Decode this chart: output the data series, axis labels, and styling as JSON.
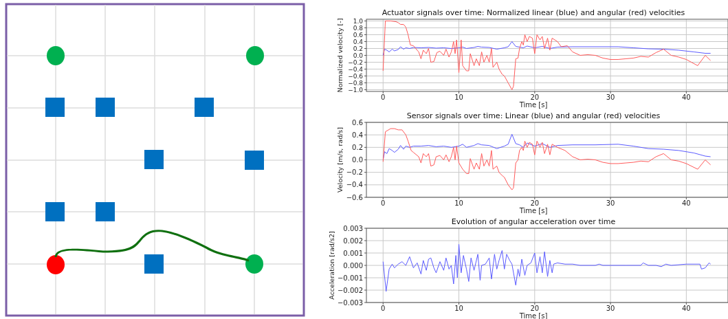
{
  "chart_data": [
    {
      "type": "line",
      "title": "Actuator signals over time: Normalized linear (blue) and angular (red) velocities",
      "xlabel": "Time [s]",
      "ylabel": "Normalized velocity [-]",
      "xlim": [
        -2.2,
        45.5
      ],
      "xticks": [
        0,
        10,
        20,
        30,
        40
      ],
      "ylim": [
        -1.05,
        1.05
      ],
      "yticks": [
        {
          "value": 1,
          "label": "1.0"
        },
        {
          "value": 0.8,
          "label": "0.8"
        },
        {
          "value": 0.6,
          "label": "0.6"
        },
        {
          "value": 0.4,
          "label": "0.4"
        },
        {
          "value": 0.2,
          "label": "0.2"
        },
        {
          "value": 0,
          "label": "0.0"
        },
        {
          "value": -0.2,
          "label": "−0.2"
        },
        {
          "value": -0.4,
          "label": "−0.4"
        },
        {
          "value": -0.6,
          "label": "−0.6"
        },
        {
          "value": -0.8,
          "label": "−0.8"
        },
        {
          "value": -1,
          "label": "−1.0"
        }
      ],
      "grid": true,
      "series": [
        {
          "color": "#5a5aff",
          "x": [
            0,
            0.2,
            0.5,
            0.8,
            1.2,
            1.5,
            2,
            2.3,
            2.7,
            3,
            3.5,
            4,
            5,
            6,
            7,
            8,
            9,
            10,
            10.5,
            11,
            12,
            12.5,
            13,
            14,
            15,
            16,
            16.5,
            17,
            17.5,
            18,
            18.5,
            19,
            20,
            21,
            22,
            23,
            25,
            28,
            31,
            33,
            35,
            37,
            39,
            41,
            42.5,
            43.2
          ],
          "values": [
            0,
            0.18,
            0.15,
            0.1,
            0.18,
            0.13,
            0.17,
            0.25,
            0.18,
            0.22,
            0.2,
            0.23,
            0.22,
            0.23,
            0.21,
            0.22,
            0.2,
            0.22,
            0.24,
            0.2,
            0.23,
            0.26,
            0.24,
            0.23,
            0.18,
            0.22,
            0.25,
            0.4,
            0.26,
            0.24,
            0.22,
            0.27,
            0.22,
            0.26,
            0.2,
            0.24,
            0.25,
            0.25,
            0.25,
            0.22,
            0.19,
            0.18,
            0.15,
            0.1,
            0.06,
            0.06
          ]
        },
        {
          "color": "#ff5a5a",
          "x": [
            0,
            0.3,
            1,
            1.7,
            2,
            2.3,
            2.7,
            3,
            3.3,
            3.6,
            4,
            4.3,
            4.7,
            5,
            5.3,
            5.7,
            6,
            6.3,
            6.7,
            7.1,
            7.5,
            8,
            8.3,
            8.7,
            9,
            9.3,
            9.5,
            9.7,
            10,
            10.3,
            10.5,
            11,
            11.3,
            11.5,
            12,
            12.3,
            12.7,
            13,
            13.3,
            13.7,
            14,
            14.3,
            14.5,
            15,
            15.3,
            15.7,
            16,
            16.5,
            17,
            17.2,
            17.5,
            17.8,
            18,
            18.3,
            18.5,
            18.7,
            19,
            19.3,
            19.7,
            20,
            20.3,
            20.7,
            21,
            21.3,
            21.7,
            22,
            22.3,
            23,
            23.5,
            24.3,
            25,
            26,
            27,
            28,
            29,
            30,
            31,
            32,
            33,
            34,
            35,
            36,
            37,
            38,
            39,
            40,
            41.5,
            42.5,
            43.2
          ],
          "values": [
            -0.45,
            1,
            1,
            0.98,
            0.95,
            0.9,
            0.9,
            0.82,
            0.6,
            0.3,
            0.28,
            0.2,
            0.1,
            -0.1,
            0.15,
            0.05,
            0.2,
            -0.2,
            -0.18,
            0.08,
            0.12,
            0,
            0.18,
            -0.05,
            0.1,
            0.4,
            0.05,
            0.45,
            -0.5,
            0.45,
            -0.3,
            -0.45,
            -0.45,
            0.05,
            -0.3,
            -0.1,
            -0.3,
            0.1,
            -0.2,
            0,
            -0.2,
            0.2,
            -0.35,
            -0.2,
            -0.4,
            -0.55,
            -0.6,
            -0.8,
            -1,
            -0.9,
            -0.1,
            -0.08,
            0.2,
            0.4,
            0.3,
            0.6,
            0.4,
            0.55,
            0.5,
            0.05,
            0.6,
            0.45,
            0.55,
            0.2,
            0.5,
            0.15,
            0.5,
            0.4,
            0.25,
            0.28,
            0.1,
            0,
            0.02,
            0,
            -0.08,
            -0.12,
            -0.12,
            -0.1,
            -0.08,
            -0.03,
            -0.05,
            0.08,
            0.18,
            0,
            -0.05,
            -0.12,
            -0.3,
            0,
            -0.15
          ]
        }
      ]
    },
    {
      "type": "line",
      "title": "Sensor signals over time: Linear (blue) and angular (red) velocities",
      "xlabel": "Time [s]",
      "ylabel": "Velocity [m/s, rad/s]",
      "xlim": [
        -2.2,
        45.5
      ],
      "xticks": [
        0,
        10,
        20,
        30,
        40
      ],
      "ylim": [
        -0.6,
        0.6
      ],
      "yticks": [
        {
          "value": 0.6,
          "label": "0.6"
        },
        {
          "value": 0.4,
          "label": "0.4"
        },
        {
          "value": 0.2,
          "label": "0.2"
        },
        {
          "value": 0,
          "label": "0.0"
        },
        {
          "value": -0.2,
          "label": "−0.2"
        },
        {
          "value": -0.4,
          "label": "−0.4"
        },
        {
          "value": -0.6,
          "label": "−0.6"
        }
      ],
      "grid": true,
      "series": [
        {
          "color": "#5a5aff",
          "x": [
            0,
            0.2,
            0.5,
            0.8,
            1.2,
            1.5,
            2,
            2.3,
            2.7,
            3,
            3.5,
            4,
            5,
            6,
            7,
            8,
            9,
            10,
            10.5,
            11,
            12,
            12.5,
            13,
            14,
            15,
            16,
            16.5,
            17,
            17.5,
            18,
            18.5,
            19,
            20,
            21,
            22,
            23,
            25,
            28,
            31,
            33,
            35,
            37,
            39,
            41,
            42.5,
            43.2
          ],
          "values": [
            0,
            0.13,
            0.1,
            0.18,
            0.15,
            0.12,
            0.17,
            0.23,
            0.17,
            0.22,
            0.2,
            0.22,
            0.22,
            0.23,
            0.21,
            0.22,
            0.2,
            0.22,
            0.25,
            0.2,
            0.23,
            0.26,
            0.24,
            0.23,
            0.18,
            0.22,
            0.25,
            0.41,
            0.26,
            0.24,
            0.2,
            0.27,
            0.22,
            0.26,
            0.2,
            0.23,
            0.24,
            0.24,
            0.25,
            0.22,
            0.18,
            0.17,
            0.15,
            0.11,
            0.06,
            0.05
          ]
        },
        {
          "color": "#ff5a5a",
          "x": [
            0,
            0.3,
            1,
            1.5,
            2,
            2.5,
            3,
            3.3,
            3.7,
            4,
            4.7,
            5,
            5.3,
            5.7,
            6,
            6.3,
            6.7,
            7,
            7.5,
            8,
            8.3,
            8.7,
            9,
            9.3,
            9.5,
            9.7,
            10,
            10.5,
            11,
            11.3,
            11.5,
            12,
            12.3,
            12.7,
            13,
            13.3,
            13.7,
            14,
            14.3,
            14.5,
            15,
            15.3,
            15.7,
            16,
            16.5,
            17,
            17.2,
            17.5,
            17.8,
            18,
            18.3,
            18.5,
            18.7,
            19,
            19.3,
            19.7,
            20,
            20.3,
            20.7,
            21,
            21.3,
            21.7,
            22,
            22.3,
            23,
            24,
            25,
            26,
            27,
            28,
            29,
            30,
            31,
            32,
            33,
            34,
            35,
            36,
            37,
            38,
            39,
            40,
            41.5,
            42.5,
            43.2
          ],
          "values": [
            -0.03,
            0.45,
            0.5,
            0.5,
            0.48,
            0.48,
            0.4,
            0.3,
            0.15,
            0.12,
            0.05,
            -0.05,
            0.1,
            0.05,
            0.1,
            -0.1,
            -0.08,
            0.05,
            0.07,
            0,
            0.08,
            -0.03,
            0.05,
            0.2,
            0,
            0.22,
            -0.05,
            -0.15,
            -0.22,
            -0.22,
            0.02,
            -0.15,
            -0.05,
            -0.15,
            0.1,
            -0.1,
            0,
            -0.1,
            0.15,
            -0.15,
            -0.1,
            -0.2,
            -0.25,
            -0.28,
            -0.4,
            -0.48,
            -0.45,
            -0.05,
            0,
            0.15,
            0.2,
            0.15,
            0.3,
            0.2,
            0.28,
            0.25,
            0.08,
            0.3,
            0.2,
            0.28,
            0.1,
            0.25,
            0.08,
            0.25,
            0.2,
            0.15,
            0.05,
            0,
            0.01,
            0,
            -0.04,
            -0.06,
            -0.06,
            -0.05,
            -0.04,
            -0.02,
            -0.03,
            0.05,
            0.1,
            0,
            -0.02,
            -0.06,
            -0.15,
            0,
            -0.08
          ]
        }
      ]
    },
    {
      "type": "line",
      "title": "Evolution of angular acceleration over time",
      "xlabel": "Time [s]",
      "ylabel": "Acceleration [rad/s2]",
      "xlim": [
        -2.2,
        45.5
      ],
      "xticks": [
        0,
        10,
        20,
        30,
        40
      ],
      "ylim": [
        -0.003,
        0.003
      ],
      "yticks": [
        {
          "value": 0.003,
          "label": "0.003"
        },
        {
          "value": 0.002,
          "label": "0.002"
        },
        {
          "value": 0.001,
          "label": "0.001"
        },
        {
          "value": 0,
          "label": "0.000"
        },
        {
          "value": -0.001,
          "label": "−0.001"
        },
        {
          "value": -0.002,
          "label": "−0.002"
        },
        {
          "value": -0.003,
          "label": "−0.003"
        }
      ],
      "grid": true,
      "series": [
        {
          "color": "#5a5aff",
          "x": [
            0,
            0.4,
            0.8,
            1.2,
            1.5,
            2,
            2.5,
            3,
            3.5,
            4,
            4.5,
            5,
            5.3,
            5.7,
            6,
            6.3,
            6.7,
            7,
            7.5,
            8,
            8.3,
            8.7,
            9,
            9.3,
            9.6,
            9.8,
            10,
            10.3,
            10.6,
            11,
            11.3,
            11.6,
            12,
            12.5,
            12.8,
            13,
            13.5,
            14,
            14.3,
            14.7,
            15,
            15.3,
            15.7,
            16,
            16.3,
            16.7,
            17,
            17.5,
            17.8,
            18,
            18.3,
            18.7,
            19,
            19.5,
            20,
            20.3,
            20.7,
            21,
            21.3,
            21.7,
            22,
            22.3,
            22.5,
            23,
            24,
            25,
            26,
            28,
            28.5,
            29,
            30,
            32,
            34,
            34.3,
            35,
            36,
            36.7,
            37.3,
            38,
            40,
            41.8,
            42,
            42.5,
            43,
            43.2
          ],
          "values": [
            0.0003,
            -0.0021,
            -0.0003,
            0.0001,
            -0.0002,
            0.0001,
            0.0003,
            0,
            0.0007,
            -0.0002,
            0.0002,
            -0.0007,
            0.0004,
            -0.0004,
            0.0005,
            0.0006,
            -0.0002,
            -0.0006,
            0.0003,
            -0.0004,
            0.0006,
            -0.0003,
            0,
            -0.0015,
            0.0008,
            -0.001,
            0.0017,
            -0.0006,
            0.0008,
            -0.0003,
            -0.0013,
            0.0006,
            -0.0004,
            0.0009,
            -0.0012,
            0,
            0.0001,
            0.0006,
            -0.0011,
            0.0009,
            -0.0003,
            0.0004,
            0.0012,
            -0.0003,
            0.0009,
            0.0004,
            0.0001,
            -0.0016,
            -0.0003,
            -0.0009,
            0.0005,
            -0.0008,
            0,
            0.0002,
            0.001,
            -0.0006,
            0.0007,
            -0.0006,
            0.0011,
            -0.0009,
            0.0004,
            -0.0006,
            0.0001,
            0.0002,
            0.0001,
            0.0001,
            0,
            0,
            0.0001,
            0,
            0,
            0,
            0,
            0.0002,
            0,
            0,
            -0.0001,
            0.0001,
            0,
            0.0001,
            0.0001,
            -0.0003,
            -0.0002,
            0.0002,
            0.0001
          ]
        }
      ]
    }
  ]
}
